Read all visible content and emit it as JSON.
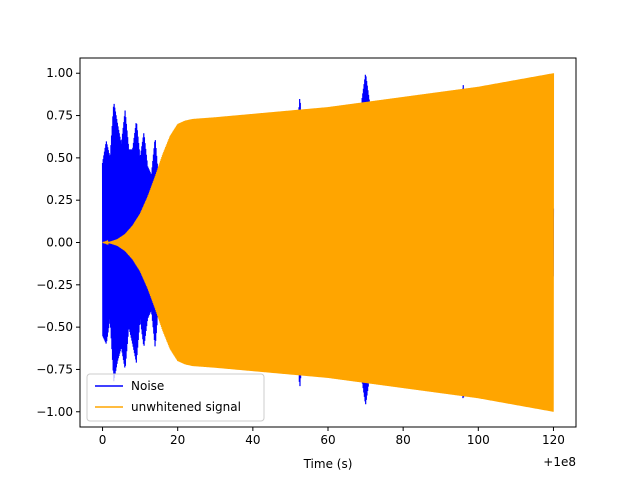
{
  "chart_data": {
    "type": "line",
    "title": "",
    "xlabel": "Time (s)",
    "ylabel": "",
    "x_offset_label": "+1e8",
    "xlim": [
      -6,
      126
    ],
    "ylim": [
      -1.09,
      1.09
    ],
    "x_ticks": [
      0,
      20,
      40,
      60,
      80,
      100,
      120
    ],
    "x_tick_labels": [
      "0",
      "20",
      "40",
      "60",
      "80",
      "100",
      "120"
    ],
    "y_ticks": [
      -1.0,
      -0.75,
      -0.5,
      -0.25,
      0.0,
      0.25,
      0.5,
      0.75,
      1.0
    ],
    "y_tick_labels": [
      "−1.00",
      "−0.75",
      "−0.50",
      "−0.25",
      "0.00",
      "0.25",
      "0.50",
      "0.75",
      "1.00"
    ],
    "grid": false,
    "legend_position": "lower-left",
    "series": [
      {
        "name": "Noise",
        "color": "#0000ff",
        "envelope_x": [
          0,
          1,
          2,
          3,
          4,
          5,
          6,
          7,
          8,
          9,
          10,
          11,
          12,
          13,
          14,
          15,
          16,
          17,
          18,
          20,
          25,
          30,
          40,
          50,
          52.5,
          55,
          57,
          60,
          65,
          70,
          75,
          80,
          90,
          96,
          100,
          110,
          120
        ],
        "envelope_upper": [
          0.47,
          0.6,
          0.5,
          0.83,
          0.7,
          0.58,
          0.78,
          0.55,
          0.55,
          0.72,
          0.5,
          0.65,
          0.45,
          0.4,
          0.62,
          0.35,
          0.5,
          0.4,
          0.3,
          0.25,
          0.2,
          0.18,
          0.15,
          0.15,
          0.86,
          0.18,
          0.73,
          0.2,
          0.2,
          1.0,
          0.2,
          0.2,
          0.2,
          0.93,
          0.2,
          0.2,
          0.2
        ],
        "envelope_lower": [
          -0.55,
          -0.6,
          -0.45,
          -0.82,
          -0.7,
          -0.62,
          -0.75,
          -0.5,
          -0.6,
          -0.71,
          -0.45,
          -0.62,
          -0.45,
          -0.4,
          -0.62,
          -0.35,
          -0.5,
          -0.4,
          -0.3,
          -0.25,
          -0.2,
          -0.18,
          -0.15,
          -0.15,
          -0.86,
          -0.18,
          -0.73,
          -0.2,
          -0.2,
          -0.96,
          -0.2,
          -0.2,
          -0.2,
          -0.93,
          -0.2,
          -0.2,
          -0.2
        ]
      },
      {
        "name": "unwhitened signal",
        "color": "#ffa500",
        "envelope_x": [
          0,
          2,
          4,
          6,
          8,
          10,
          12,
          14,
          16,
          18,
          20,
          22,
          24,
          30,
          40,
          50,
          60,
          70,
          80,
          90,
          100,
          110,
          120
        ],
        "envelope_upper": [
          0.0,
          0.005,
          0.02,
          0.05,
          0.1,
          0.17,
          0.27,
          0.39,
          0.52,
          0.63,
          0.7,
          0.72,
          0.73,
          0.74,
          0.76,
          0.78,
          0.8,
          0.83,
          0.86,
          0.89,
          0.92,
          0.96,
          1.0
        ],
        "envelope_lower": [
          0.0,
          -0.005,
          -0.02,
          -0.05,
          -0.1,
          -0.17,
          -0.27,
          -0.39,
          -0.52,
          -0.63,
          -0.7,
          -0.72,
          -0.73,
          -0.74,
          -0.76,
          -0.78,
          -0.8,
          -0.83,
          -0.86,
          -0.89,
          -0.92,
          -0.96,
          -1.0
        ]
      }
    ]
  }
}
